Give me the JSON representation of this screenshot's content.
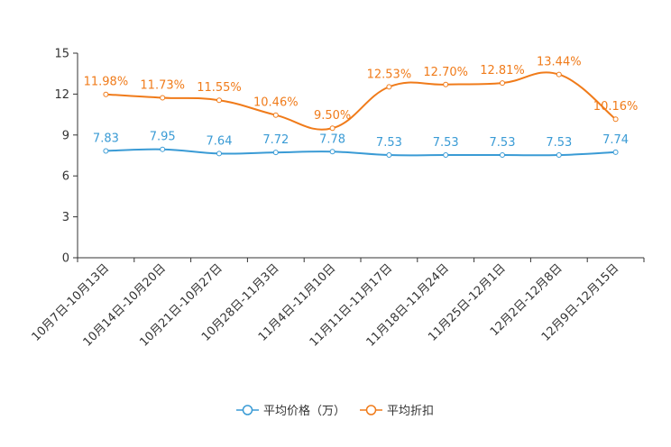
{
  "chart_data": {
    "type": "line",
    "title": "",
    "xlabel": "",
    "ylabel": "",
    "ylim": [
      0,
      15
    ],
    "yticks": [
      0,
      3,
      6,
      9,
      12,
      15
    ],
    "grid": false,
    "legend_position": "bottom",
    "categories": [
      "10月7日-10月13日",
      "10月14日-10月20日",
      "10月21日-10月27日",
      "10月28日-11月3日",
      "11月4日-11月10日",
      "11月11日-11月17日",
      "11月18日-11月24日",
      "11月25日-12月1日",
      "12月2日-12月8日",
      "12月9日-12月15日"
    ],
    "series": [
      {
        "name": "平均价格（万）",
        "color": "#3a9bd5",
        "values": [
          7.83,
          7.95,
          7.64,
          7.72,
          7.78,
          7.53,
          7.53,
          7.53,
          7.53,
          7.74
        ],
        "labels": [
          "7.83",
          "7.95",
          "7.64",
          "7.72",
          "7.78",
          "7.53",
          "7.53",
          "7.53",
          "7.53",
          "7.74"
        ]
      },
      {
        "name": "平均折扣",
        "color": "#f07b1a",
        "values": [
          11.98,
          11.73,
          11.55,
          10.46,
          9.5,
          12.53,
          12.7,
          12.81,
          13.44,
          10.16
        ],
        "labels": [
          "11.98%",
          "11.73%",
          "11.55%",
          "10.46%",
          "9.50%",
          "12.53%",
          "12.70%",
          "12.81%",
          "13.44%",
          "10.16%"
        ]
      }
    ]
  }
}
